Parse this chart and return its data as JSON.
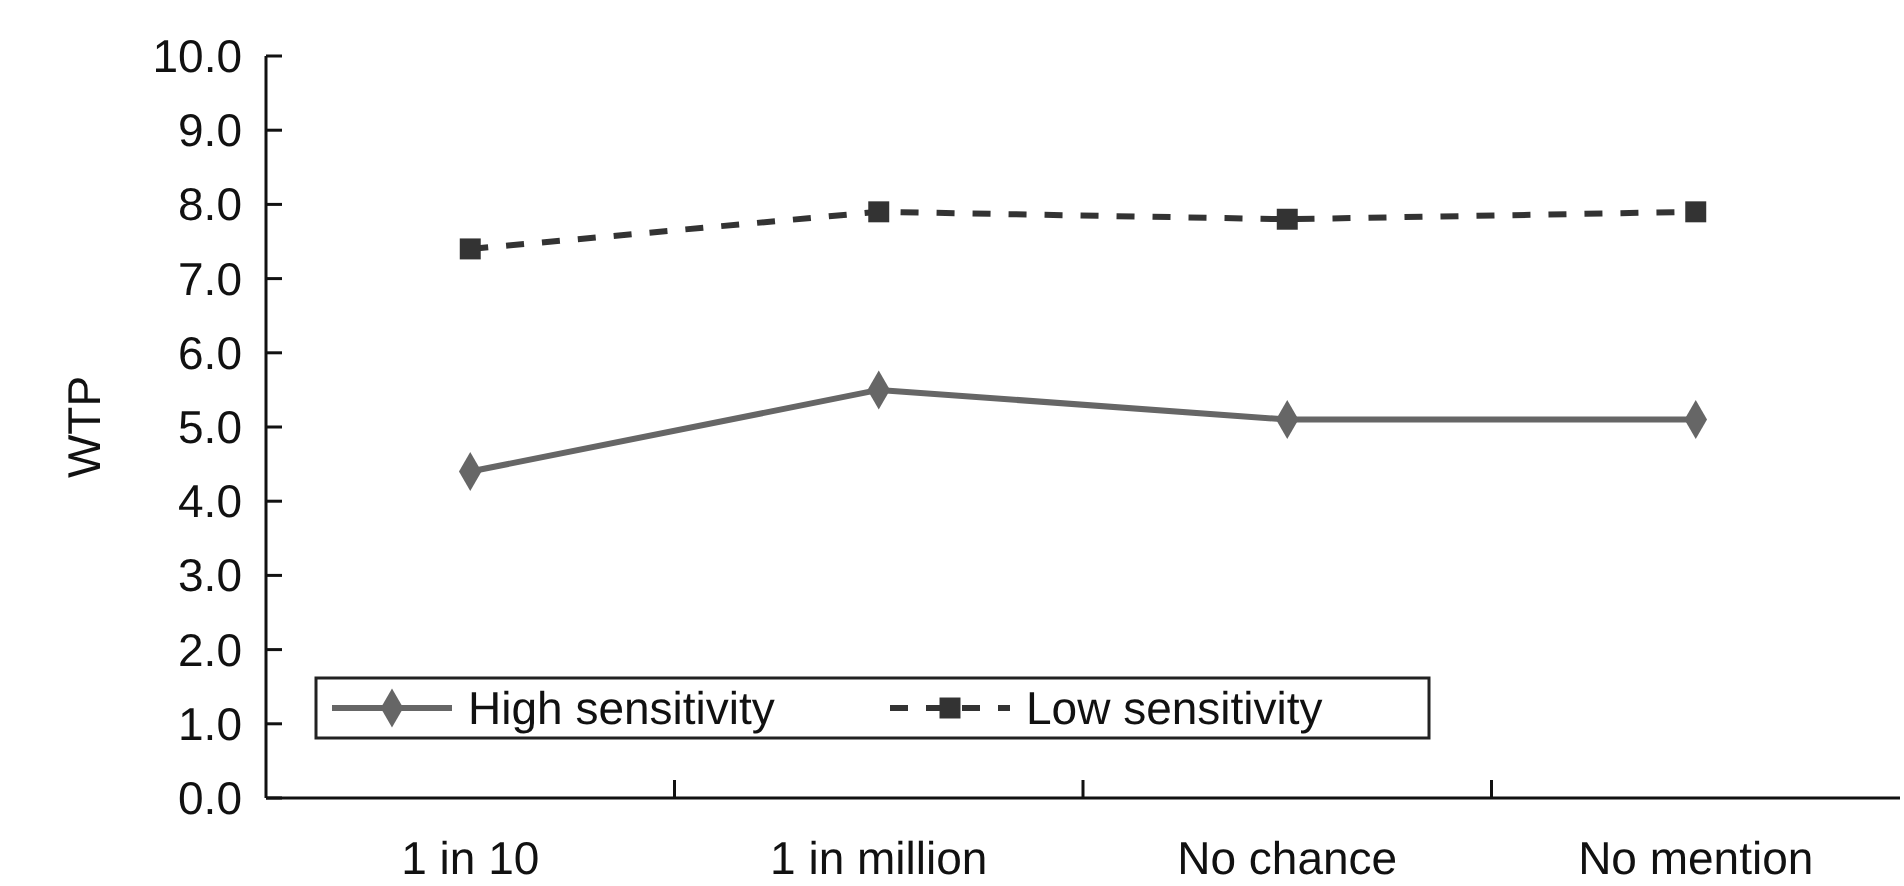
{
  "chart_data": {
    "type": "line",
    "ylabel": "WTP",
    "categories": [
      "1 in 10",
      "1 in million",
      "No chance",
      "No mention"
    ],
    "series": [
      {
        "name": "High sensitivity",
        "color": "#666666",
        "values": [
          4.4,
          5.5,
          5.1,
          5.1
        ],
        "marker": "diamond",
        "line_style": "solid"
      },
      {
        "name": "Low sensitivity",
        "color": "#333333",
        "values": [
          7.4,
          7.9,
          7.8,
          7.9
        ],
        "marker": "square",
        "line_style": "dashed"
      }
    ],
    "ylim": [
      0,
      10
    ],
    "yticks": [
      {
        "value": 0,
        "label": "0.0"
      },
      {
        "value": 1,
        "label": "1.0"
      },
      {
        "value": 2,
        "label": "2.0"
      },
      {
        "value": 3,
        "label": "3.0"
      },
      {
        "value": 4,
        "label": "4.0"
      },
      {
        "value": 5,
        "label": "5.0"
      },
      {
        "value": 6,
        "label": "6.0"
      },
      {
        "value": 7,
        "label": "7.0"
      },
      {
        "value": 8,
        "label": "8.0"
      },
      {
        "value": 9,
        "label": "9.0"
      },
      {
        "value": 10,
        "label": "10.0"
      }
    ],
    "grid": false,
    "legend": "bottom left"
  }
}
